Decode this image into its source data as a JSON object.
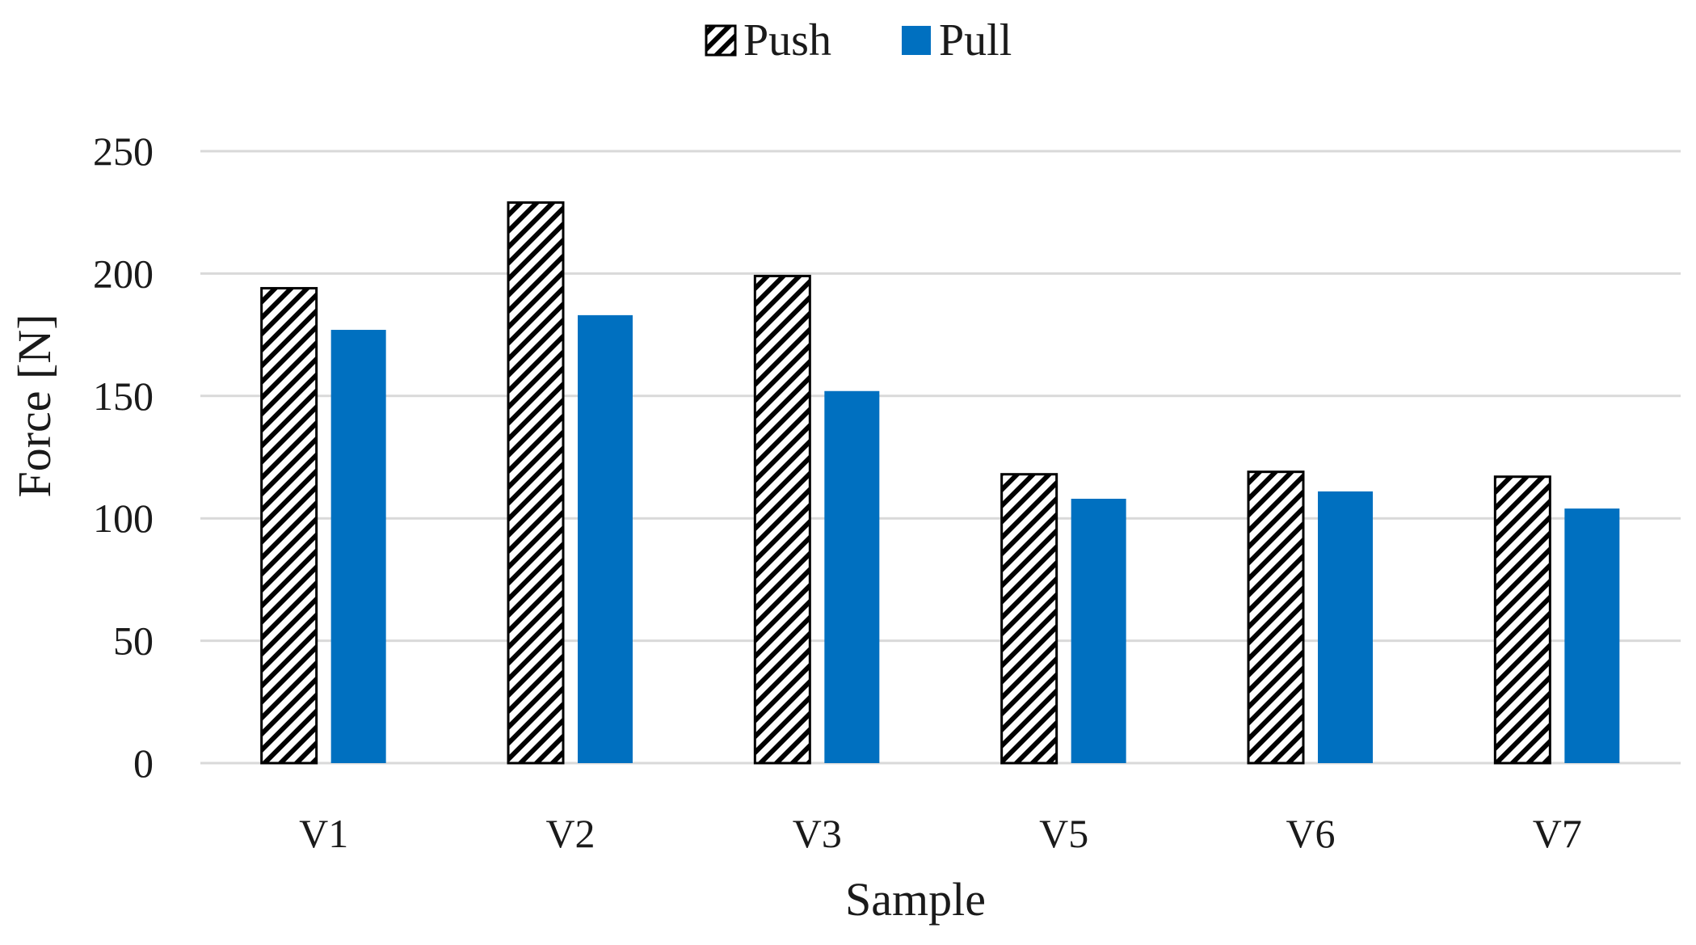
{
  "chart_data": {
    "type": "bar",
    "title": "",
    "categories": [
      "V1",
      "V2",
      "V3",
      "V5",
      "V6",
      "V7"
    ],
    "series": [
      {
        "name": "Push",
        "values": [
          194,
          229,
          199,
          118,
          119,
          117
        ],
        "color": "#000000",
        "fill": "diagonal-hatch"
      },
      {
        "name": "Pull",
        "values": [
          177,
          183,
          152,
          108,
          111,
          104
        ],
        "color": "#0070C0",
        "fill": "solid"
      }
    ],
    "xlabel": "Sample",
    "ylabel": "Force [N]",
    "ylim": [
      0,
      250
    ],
    "yticks": [
      0,
      50,
      100,
      150,
      200,
      250
    ],
    "grid": true,
    "legend_position": "top-center"
  }
}
